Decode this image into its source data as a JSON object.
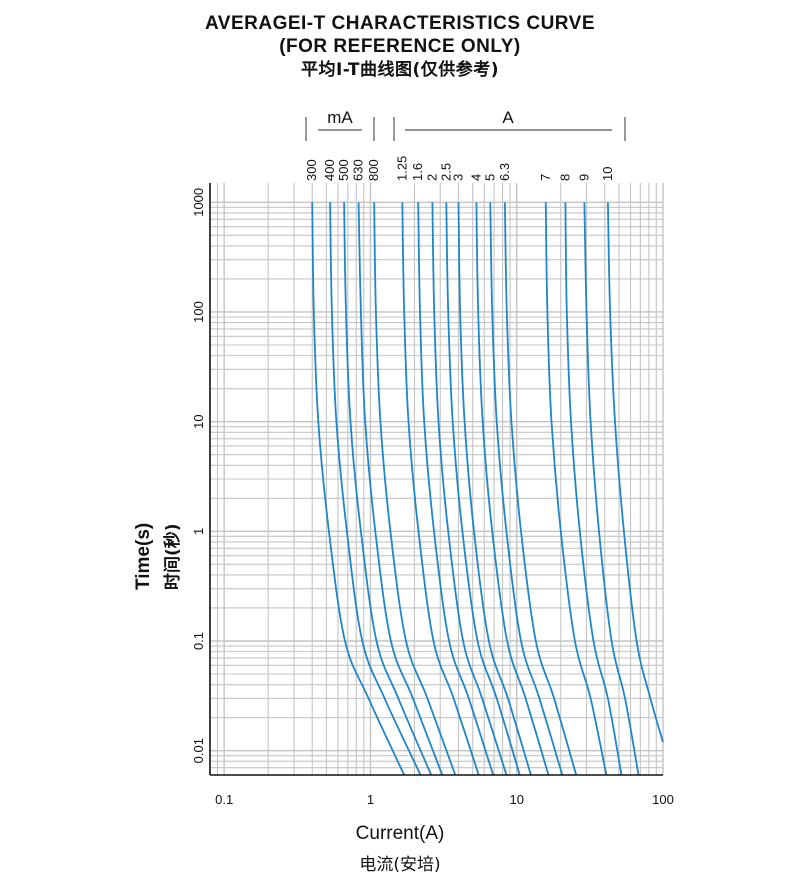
{
  "titles": {
    "line1": "AVERAGEI-T CHARACTERISTICS CURVE",
    "line2": "(FOR REFERENCE ONLY)",
    "line3": "平均I-T曲线图(仅供参考)"
  },
  "unit_labels": {
    "milliamp": "mA",
    "amp": "A"
  },
  "x_axis": {
    "label_en": "Current(A)",
    "label_cn": "电流(安培)"
  },
  "y_axis": {
    "label_en": "Time(s)",
    "label_cn": "时间(秒)"
  },
  "chart_data": {
    "type": "line",
    "title": "AVERAGEI-T CHARACTERISTICS CURVE",
    "xlabel": "Current(A)",
    "ylabel": "Time(s)",
    "xscale": "log",
    "yscale": "log",
    "xlim": [
      0.08,
      100
    ],
    "ylim": [
      0.006,
      1500
    ],
    "x_ticks": [
      "0.1",
      "1",
      "10",
      "100"
    ],
    "x_tick_values": [
      0.1,
      1,
      10,
      100
    ],
    "y_ticks": [
      "0.01",
      "0.1",
      "1",
      "10",
      "100",
      "1000"
    ],
    "y_tick_values": [
      0.01,
      0.1,
      1,
      10,
      100,
      1000
    ],
    "grid": true,
    "line_color": "#1f86c8",
    "series": [
      {
        "name": "300",
        "x": [
          0.4,
          0.41,
          0.44,
          0.52,
          0.67,
          0.97,
          1.7
        ],
        "y": [
          1000,
          100,
          10,
          1,
          0.1,
          0.03,
          0.006
        ]
      },
      {
        "name": "400",
        "x": [
          0.53,
          0.545,
          0.585,
          0.69,
          0.88,
          1.25,
          2.2
        ],
        "y": [
          1000,
          100,
          10,
          1,
          0.1,
          0.03,
          0.006
        ]
      },
      {
        "name": "500",
        "x": [
          0.66,
          0.68,
          0.73,
          0.86,
          1.1,
          1.55,
          2.6
        ],
        "y": [
          1000,
          100,
          10,
          1,
          0.1,
          0.03,
          0.006
        ]
      },
      {
        "name": "630",
        "x": [
          0.83,
          0.86,
          0.92,
          1.08,
          1.38,
          1.95,
          3.1
        ],
        "y": [
          1000,
          100,
          10,
          1,
          0.1,
          0.03,
          0.006
        ]
      },
      {
        "name": "800",
        "x": [
          1.06,
          1.09,
          1.17,
          1.37,
          1.75,
          2.45,
          3.8
        ],
        "y": [
          1000,
          100,
          10,
          1,
          0.1,
          0.03,
          0.006
        ]
      },
      {
        "name": "1.25",
        "x": [
          1.65,
          1.7,
          1.82,
          2.13,
          2.7,
          3.7,
          5.5
        ],
        "y": [
          1000,
          100,
          10,
          1,
          0.1,
          0.03,
          0.006
        ]
      },
      {
        "name": "1.6",
        "x": [
          2.12,
          2.18,
          2.33,
          2.72,
          3.45,
          4.7,
          6.9
        ],
        "y": [
          1000,
          100,
          10,
          1,
          0.1,
          0.03,
          0.006
        ]
      },
      {
        "name": "2",
        "x": [
          2.65,
          2.73,
          2.92,
          3.4,
          4.3,
          5.8,
          8.5
        ],
        "y": [
          1000,
          100,
          10,
          1,
          0.1,
          0.03,
          0.006
        ]
      },
      {
        "name": "2.5",
        "x": [
          3.3,
          3.4,
          3.65,
          4.25,
          5.4,
          7.3,
          10.5
        ],
        "y": [
          1000,
          100,
          10,
          1,
          0.1,
          0.03,
          0.006
        ]
      },
      {
        "name": "3",
        "x": [
          4.0,
          4.1,
          4.4,
          5.1,
          6.45,
          8.7,
          12.5
        ],
        "y": [
          1000,
          100,
          10,
          1,
          0.1,
          0.03,
          0.006
        ]
      },
      {
        "name": "4",
        "x": [
          5.3,
          5.45,
          5.85,
          6.8,
          8.6,
          11.5,
          16.5
        ],
        "y": [
          1000,
          100,
          10,
          1,
          0.1,
          0.03,
          0.006
        ]
      },
      {
        "name": "5",
        "x": [
          6.6,
          6.8,
          7.3,
          8.5,
          10.7,
          14.3,
          20.5
        ],
        "y": [
          1000,
          100,
          10,
          1,
          0.1,
          0.03,
          0.006
        ]
      },
      {
        "name": "6.3",
        "x": [
          8.3,
          8.55,
          9.2,
          10.7,
          13.5,
          18.0,
          25.5
        ],
        "y": [
          1000,
          100,
          10,
          1,
          0.1,
          0.03,
          0.006
        ]
      },
      {
        "name": "7",
        "x": [
          15.8,
          16.2,
          17.3,
          20.0,
          25.0,
          32.0,
          41.0
        ],
        "y": [
          1000,
          100,
          10,
          1,
          0.1,
          0.03,
          0.006
        ]
      },
      {
        "name": "8",
        "x": [
          21.5,
          22.0,
          23.5,
          27.0,
          33.5,
          42.0,
          52.0
        ],
        "y": [
          1000,
          100,
          10,
          1,
          0.1,
          0.03,
          0.006
        ]
      },
      {
        "name": "9",
        "x": [
          29.0,
          30.0,
          32.0,
          36.5,
          44.5,
          55.0,
          68.0
        ],
        "y": [
          1000,
          100,
          10,
          1,
          0.1,
          0.03,
          0.006
        ]
      },
      {
        "name": "10",
        "x": [
          42.0,
          43.5,
          47.0,
          54.0,
          66.0,
          82.0,
          100
        ],
        "y": [
          1000,
          100,
          10,
          1,
          0.1,
          0.03,
          0.012
        ]
      }
    ]
  }
}
